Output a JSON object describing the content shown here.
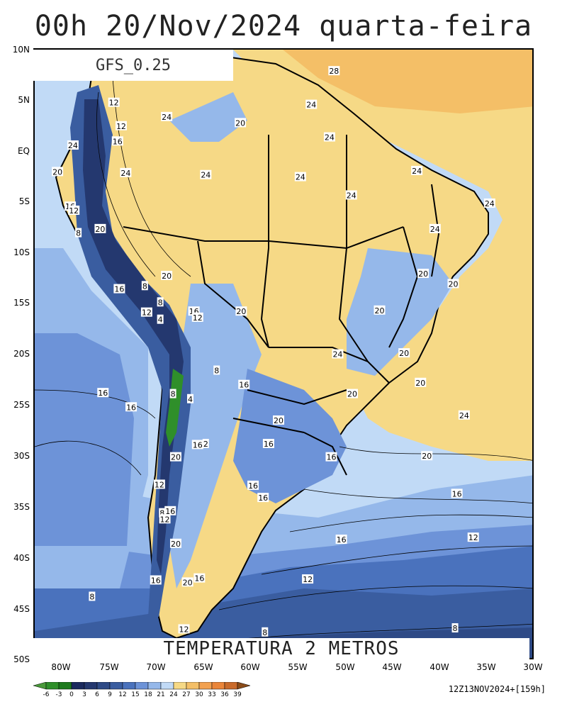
{
  "title": "00h 20/Nov/2024 quarta-feira",
  "model": "GFS_0.25",
  "field": "TEMPERATURA 2 METROS",
  "run_info": "12Z13NOV2024+[159h]",
  "lat_labels": [
    "10N",
    "5N",
    "EQ",
    "5S",
    "10S",
    "15S",
    "20S",
    "25S",
    "30S",
    "35S",
    "40S",
    "45S",
    "50S"
  ],
  "lon_labels": [
    "80W",
    "75W",
    "70W",
    "65W",
    "60W",
    "55W",
    "50W",
    "45W",
    "40W",
    "35W",
    "30W"
  ],
  "colorbar": {
    "levels": [
      "-6",
      "-3",
      "0",
      "3",
      "6",
      "9",
      "12",
      "15",
      "18",
      "21",
      "24",
      "27",
      "30",
      "33",
      "36",
      "39"
    ],
    "colors": [
      "#4a9a3a",
      "#2f8f2a",
      "#1e7a1e",
      "#1b2a5e",
      "#24386f",
      "#2e4a86",
      "#3a5da0",
      "#4a72bd",
      "#6d93d8",
      "#95b8ea",
      "#c1daf6",
      "#f6d986",
      "#f4bf67",
      "#f2a150",
      "#ea8539",
      "#c96a2a",
      "#8a4b18"
    ]
  },
  "contour_labels": [
    {
      "text": "28",
      "lon": -52.1,
      "lat": 7.9
    },
    {
      "text": "24",
      "lon": -54.6,
      "lat": 4.6
    },
    {
      "text": "20",
      "lon": -62.4,
      "lat": 2.8
    },
    {
      "text": "24",
      "lon": -52.6,
      "lat": 1.4
    },
    {
      "text": "24",
      "lon": -70.5,
      "lat": 3.4
    },
    {
      "text": "12",
      "lon": -76.3,
      "lat": 4.8
    },
    {
      "text": "12",
      "lon": -75.5,
      "lat": 2.5
    },
    {
      "text": "16",
      "lon": -75.9,
      "lat": 1.0
    },
    {
      "text": "24",
      "lon": -80.8,
      "lat": 0.6
    },
    {
      "text": "20",
      "lon": -82.5,
      "lat": -2.0
    },
    {
      "text": "24",
      "lon": -75.0,
      "lat": -2.1
    },
    {
      "text": "24",
      "lon": -66.2,
      "lat": -2.3
    },
    {
      "text": "24",
      "lon": -55.8,
      "lat": -2.5
    },
    {
      "text": "24",
      "lon": -43.0,
      "lat": -1.9
    },
    {
      "text": "24",
      "lon": -50.2,
      "lat": -4.3
    },
    {
      "text": "24",
      "lon": -35.0,
      "lat": -5.1
    },
    {
      "text": "16",
      "lon": -81.1,
      "lat": -5.4
    },
    {
      "text": "12",
      "lon": -80.7,
      "lat": -5.8
    },
    {
      "text": "20",
      "lon": -77.8,
      "lat": -7.6
    },
    {
      "text": "8",
      "lon": -80.2,
      "lat": -8.0
    },
    {
      "text": "24",
      "lon": -41.0,
      "lat": -7.6
    },
    {
      "text": "20",
      "lon": -70.5,
      "lat": -12.2
    },
    {
      "text": "20",
      "lon": -42.3,
      "lat": -12.0
    },
    {
      "text": "20",
      "lon": -39.0,
      "lat": -13.0
    },
    {
      "text": "16",
      "lon": -75.7,
      "lat": -13.5
    },
    {
      "text": "8",
      "lon": -72.9,
      "lat": -13.2
    },
    {
      "text": "8",
      "lon": -71.2,
      "lat": -14.8
    },
    {
      "text": "12",
      "lon": -72.7,
      "lat": -15.8
    },
    {
      "text": "4",
      "lon": -71.2,
      "lat": -16.5
    },
    {
      "text": "16",
      "lon": -67.5,
      "lat": -15.7
    },
    {
      "text": "12",
      "lon": -67.1,
      "lat": -16.3
    },
    {
      "text": "20",
      "lon": -62.3,
      "lat": -15.7
    },
    {
      "text": "20",
      "lon": -47.1,
      "lat": -15.6
    },
    {
      "text": "24",
      "lon": -51.7,
      "lat": -19.9
    },
    {
      "text": "20",
      "lon": -44.4,
      "lat": -19.8
    },
    {
      "text": "8",
      "lon": -65.0,
      "lat": -21.5
    },
    {
      "text": "16",
      "lon": -62.0,
      "lat": -22.9
    },
    {
      "text": "20",
      "lon": -42.6,
      "lat": -22.7
    },
    {
      "text": "20",
      "lon": -50.1,
      "lat": -23.8
    },
    {
      "text": "16",
      "lon": -77.5,
      "lat": -23.7
    },
    {
      "text": "8",
      "lon": -69.8,
      "lat": -23.8
    },
    {
      "text": "4",
      "lon": -67.9,
      "lat": -24.3
    },
    {
      "text": "16",
      "lon": -74.4,
      "lat": -25.1
    },
    {
      "text": "24",
      "lon": -37.8,
      "lat": -25.9
    },
    {
      "text": "20",
      "lon": -58.2,
      "lat": -26.4
    },
    {
      "text": "16",
      "lon": -67.1,
      "lat": -28.8
    },
    {
      "text": "2",
      "lon": -66.2,
      "lat": -28.7
    },
    {
      "text": "16",
      "lon": -59.3,
      "lat": -28.7
    },
    {
      "text": "20",
      "lon": -69.5,
      "lat": -30.0
    },
    {
      "text": "16",
      "lon": -52.4,
      "lat": -30.0
    },
    {
      "text": "20",
      "lon": -41.9,
      "lat": -29.9
    },
    {
      "text": "12",
      "lon": -71.3,
      "lat": -32.7
    },
    {
      "text": "16",
      "lon": -61.0,
      "lat": -32.8
    },
    {
      "text": "16",
      "lon": -59.9,
      "lat": -34.0
    },
    {
      "text": "16",
      "lon": -38.6,
      "lat": -33.6
    },
    {
      "text": "8",
      "lon": -71.0,
      "lat": -35.5
    },
    {
      "text": "16",
      "lon": -70.1,
      "lat": -35.3
    },
    {
      "text": "12",
      "lon": -70.7,
      "lat": -36.1
    },
    {
      "text": "20",
      "lon": -69.5,
      "lat": -38.5
    },
    {
      "text": "16",
      "lon": -51.3,
      "lat": -38.1
    },
    {
      "text": "12",
      "lon": -36.8,
      "lat": -37.9
    },
    {
      "text": "16",
      "lon": -71.7,
      "lat": -42.1
    },
    {
      "text": "20",
      "lon": -68.2,
      "lat": -42.3
    },
    {
      "text": "16",
      "lon": -66.9,
      "lat": -41.9
    },
    {
      "text": "12",
      "lon": -55.0,
      "lat": -42.0
    },
    {
      "text": "8",
      "lon": -78.7,
      "lat": -43.7
    },
    {
      "text": "12",
      "lon": -68.6,
      "lat": -46.9
    },
    {
      "text": "8",
      "lon": -59.7,
      "lat": -47.2
    },
    {
      "text": "8",
      "lon": -38.8,
      "lat": -46.8
    }
  ]
}
